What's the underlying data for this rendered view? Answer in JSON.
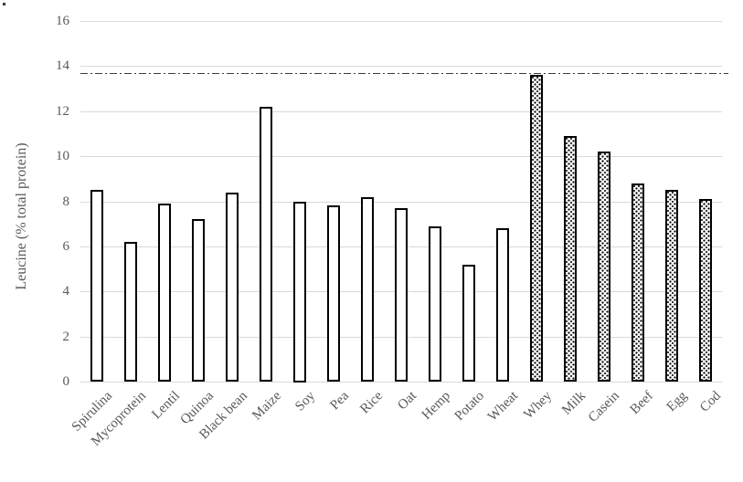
{
  "chart_data": {
    "type": "bar",
    "title": "",
    "xlabel": "",
    "ylabel": "Leucine (% total protein)",
    "ylim": [
      0,
      16
    ],
    "yticks": [
      "0",
      "2",
      "4",
      "6",
      "8",
      "10",
      "12",
      "14",
      "16"
    ],
    "grid": true,
    "legend": "none",
    "reference_line": {
      "value": 13.7,
      "style": "dash-dot"
    },
    "categories": [
      "Spirulina",
      "Mycoprotein",
      "Lentil",
      "Quinoa",
      "Black bean",
      "Maize",
      "Soy",
      "Pea",
      "Rice",
      "Oat",
      "Hemp",
      "Potato",
      "Wheat",
      "Whey",
      "Milk",
      "Casein",
      "Beef",
      "Egg",
      "Cod"
    ],
    "bars": [
      {
        "label": "Spirulina",
        "value": 8.5,
        "fill": "white"
      },
      {
        "label": "Mycoprotein",
        "value": 6.2,
        "fill": "white"
      },
      {
        "label": "Lentil",
        "value": 7.9,
        "fill": "white"
      },
      {
        "label": "Quinoa",
        "value": 7.2,
        "fill": "white"
      },
      {
        "label": "Black bean",
        "value": 8.4,
        "fill": "white"
      },
      {
        "label": "Maize",
        "value": 12.2,
        "fill": "white"
      },
      {
        "label": "Soy",
        "value": 8.0,
        "fill": "white"
      },
      {
        "label": "Pea",
        "value": 7.8,
        "fill": "white"
      },
      {
        "label": "Rice",
        "value": 8.2,
        "fill": "white"
      },
      {
        "label": "Oat",
        "value": 7.7,
        "fill": "white"
      },
      {
        "label": "Hemp",
        "value": 6.9,
        "fill": "white"
      },
      {
        "label": "Potato",
        "value": 5.2,
        "fill": "white"
      },
      {
        "label": "Wheat",
        "value": 6.8,
        "fill": "white"
      },
      {
        "label": "Whey",
        "value": 13.6,
        "fill": "dotted"
      },
      {
        "label": "Milk",
        "value": 10.9,
        "fill": "dotted"
      },
      {
        "label": "Casein",
        "value": 10.2,
        "fill": "dotted"
      },
      {
        "label": "Beef",
        "value": 8.8,
        "fill": "dotted"
      },
      {
        "label": "Egg",
        "value": 8.5,
        "fill": "dotted"
      },
      {
        "label": "Cod",
        "value": 8.1,
        "fill": "dotted"
      }
    ],
    "colors": {
      "bar_border": "#000000",
      "bar_fill_plant": "#ffffff",
      "bar_pattern_animal": "#000000",
      "gridline": "#d9d9d9",
      "axis_text": "#595959",
      "reference_line": "#3b3b3b"
    }
  }
}
